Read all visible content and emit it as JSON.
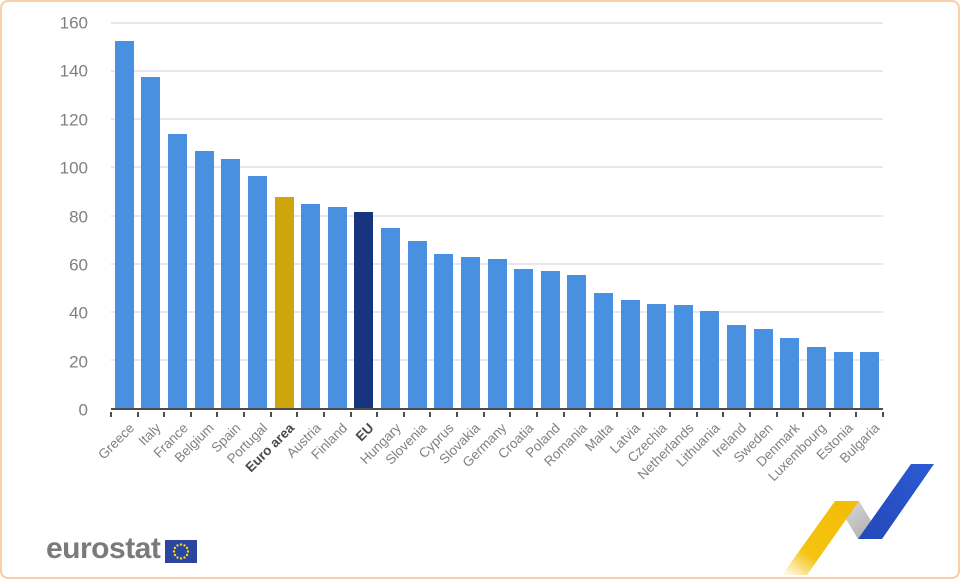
{
  "page": {
    "background_color": "#ffffff",
    "border_color": "#f8cfa6"
  },
  "chart_data": {
    "type": "bar",
    "title": "",
    "xlabel": "",
    "ylabel": "",
    "categories": [
      "Greece",
      "Italy",
      "France",
      "Belgium",
      "Spain",
      "Portugal",
      "Euro area",
      "Austria",
      "Finland",
      "EU",
      "Hungary",
      "Slovenia",
      "Cyprus",
      "Slovakia",
      "Germany",
      "Croatia",
      "Poland",
      "Romania",
      "Malta",
      "Latvia",
      "Czechia",
      "Netherlands",
      "Lithuania",
      "Ireland",
      "Sweden",
      "Denmark",
      "Luxembourg",
      "Estonia",
      "Bulgaria"
    ],
    "values": [
      152.5,
      137.7,
      113.9,
      106.7,
      103.3,
      96.4,
      87.8,
      84.7,
      83.4,
      81.6,
      75.0,
      69.5,
      64.0,
      62.6,
      62.1,
      57.9,
      56.9,
      55.2,
      47.6,
      44.9,
      43.2,
      43.0,
      40.2,
      34.3,
      32.9,
      29.3,
      25.5,
      23.4,
      23.2
    ],
    "ylim": [
      0,
      160
    ],
    "yticks": [
      0,
      20,
      40,
      60,
      80,
      100,
      120,
      140,
      160
    ],
    "grid": "horizontal",
    "legend": "none",
    "colors": {
      "default": "#4a90e0",
      "highlights": {
        "Euro area": "#cfa50c",
        "EU": "#16357e"
      }
    },
    "bold_labels": [
      "Euro area",
      "EU"
    ]
  },
  "branding": {
    "logo_text": "eurostat",
    "flag_color": "#2a469e",
    "star_color": "#ffd617",
    "ribbon_colors": {
      "yellow": "#f5c413",
      "gray": "#b5b5b5",
      "blue": "#2b53cb"
    }
  }
}
